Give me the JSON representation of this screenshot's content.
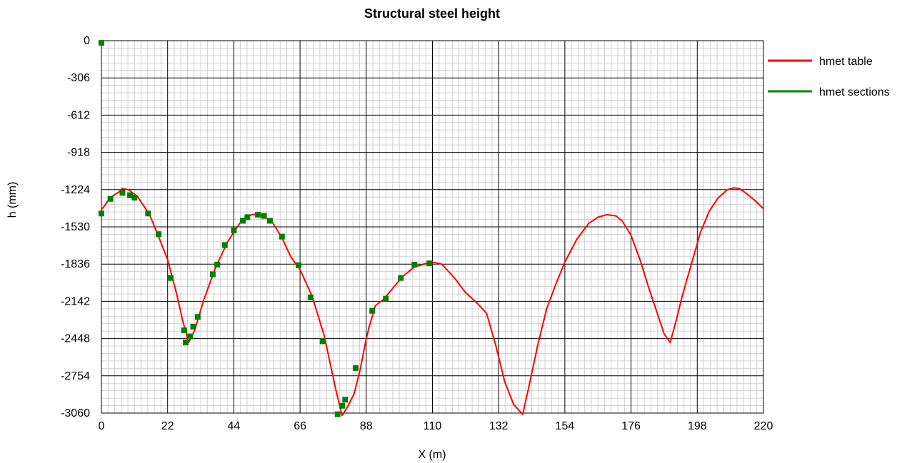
{
  "chart_data": {
    "type": "line",
    "title": "Structural steel height",
    "xlabel": "X (m)",
    "ylabel": "h (mm)",
    "xlim": [
      0,
      220
    ],
    "ylim": [
      -3060,
      0
    ],
    "xticks": [
      0,
      22,
      44,
      66,
      88,
      110,
      132,
      154,
      176,
      198,
      220
    ],
    "yticks": [
      0,
      -306,
      -612,
      -918,
      -1224,
      -1530,
      -1836,
      -2142,
      -2448,
      -2754,
      -3060
    ],
    "grid": true,
    "minor_grid": true,
    "legend_position": "top-right",
    "series": [
      {
        "name": "hmet table",
        "style": "line",
        "color": "#ff0000",
        "x": [
          0,
          3,
          6,
          7,
          9,
          12,
          16,
          19,
          22,
          25,
          27,
          29,
          31,
          34,
          38,
          42,
          46,
          48,
          50,
          52,
          54,
          57,
          60,
          63,
          66,
          70,
          74,
          78,
          80,
          82,
          84,
          86,
          88,
          89,
          91,
          94,
          97,
          100,
          104,
          108,
          110,
          113,
          117,
          121,
          125,
          128,
          131,
          134,
          137,
          140,
          142,
          145,
          148,
          151,
          154,
          158,
          162,
          165,
          168,
          171,
          173,
          176,
          179,
          182,
          185,
          187,
          189,
          191,
          193,
          196,
          199,
          202,
          205,
          208,
          210,
          212,
          214,
          217,
          220
        ],
        "y": [
          -1390,
          -1290,
          -1240,
          -1215,
          -1225,
          -1280,
          -1430,
          -1610,
          -1800,
          -2080,
          -2300,
          -2480,
          -2380,
          -2130,
          -1860,
          -1650,
          -1500,
          -1450,
          -1430,
          -1425,
          -1440,
          -1500,
          -1620,
          -1780,
          -1880,
          -2100,
          -2420,
          -2880,
          -3080,
          -3000,
          -2900,
          -2700,
          -2450,
          -2350,
          -2180,
          -2120,
          -2030,
          -1940,
          -1860,
          -1830,
          -1820,
          -1835,
          -1940,
          -2070,
          -2160,
          -2240,
          -2500,
          -2800,
          -2990,
          -3070,
          -2850,
          -2500,
          -2200,
          -2000,
          -1820,
          -1630,
          -1500,
          -1450,
          -1430,
          -1440,
          -1480,
          -1600,
          -1800,
          -2040,
          -2260,
          -2410,
          -2480,
          -2300,
          -2100,
          -1840,
          -1580,
          -1400,
          -1290,
          -1225,
          -1210,
          -1215,
          -1250,
          -1310,
          -1380
        ]
      },
      {
        "name": "hmet sections",
        "style": "markers",
        "color": "#008000",
        "x": [
          0,
          0,
          3,
          7,
          9.5,
          11,
          15.5,
          19,
          23,
          27.5,
          28,
          29.5,
          30.5,
          32,
          37,
          38.5,
          41,
          44,
          47,
          48.5,
          52,
          54,
          56,
          60,
          65.5,
          69.5,
          73.5,
          78.5,
          80,
          81,
          84.5,
          90,
          94.5,
          99.5,
          104,
          109
        ],
        "y": [
          -18,
          -1420,
          -1300,
          -1250,
          -1270,
          -1290,
          -1420,
          -1590,
          -1950,
          -2380,
          -2480,
          -2430,
          -2350,
          -2270,
          -1920,
          -1840,
          -1680,
          -1560,
          -1480,
          -1450,
          -1430,
          -1440,
          -1480,
          -1610,
          -1845,
          -2110,
          -2470,
          -3070,
          -3000,
          -2950,
          -2690,
          -2220,
          -2120,
          -1950,
          -1840,
          -1830
        ]
      }
    ]
  }
}
